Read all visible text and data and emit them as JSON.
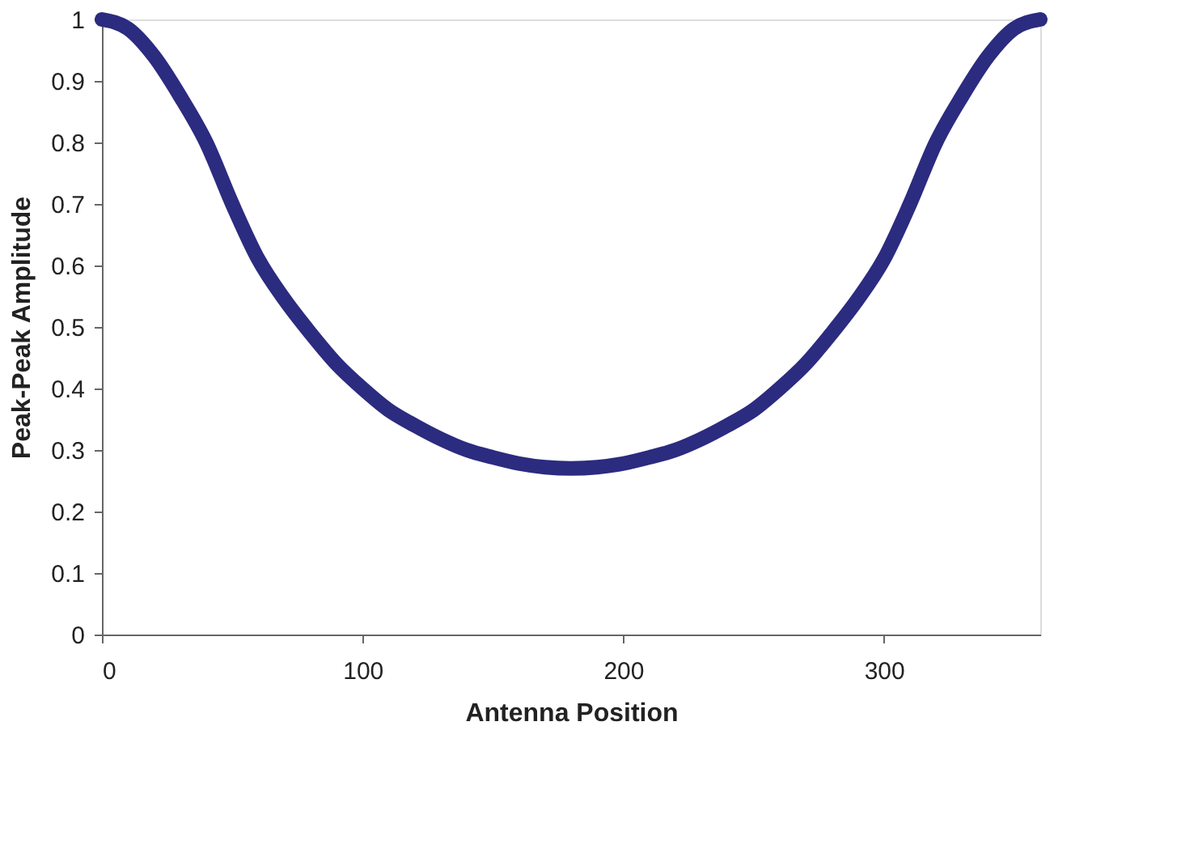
{
  "chart_data": {
    "type": "line",
    "xlabel": "Antenna Position",
    "ylabel": "Peak-Peak Amplitude",
    "x": [
      0,
      10,
      20,
      30,
      40,
      50,
      60,
      70,
      80,
      90,
      100,
      110,
      120,
      130,
      140,
      150,
      160,
      170,
      180,
      190,
      200,
      210,
      220,
      230,
      240,
      250,
      260,
      270,
      280,
      290,
      300,
      310,
      320,
      330,
      340,
      350,
      360
    ],
    "series": [
      {
        "color": "#2b2b80",
        "values": [
          1.0,
          0.985,
          0.94,
          0.875,
          0.8,
          0.7,
          0.61,
          0.545,
          0.49,
          0.44,
          0.4,
          0.365,
          0.34,
          0.318,
          0.3,
          0.288,
          0.278,
          0.272,
          0.27,
          0.272,
          0.278,
          0.288,
          0.3,
          0.318,
          0.34,
          0.365,
          0.4,
          0.44,
          0.49,
          0.545,
          0.61,
          0.7,
          0.8,
          0.875,
          0.94,
          0.985,
          1.0
        ]
      }
    ],
    "xlim": [
      0,
      360
    ],
    "xticks": [
      0,
      100,
      200,
      300
    ],
    "ylim": [
      0,
      1
    ],
    "yticks": [
      0,
      0.1,
      0.2,
      0.3,
      0.4,
      0.5,
      0.6,
      0.7,
      0.8,
      0.9,
      1
    ],
    "grid": false,
    "line_style": "solid"
  }
}
